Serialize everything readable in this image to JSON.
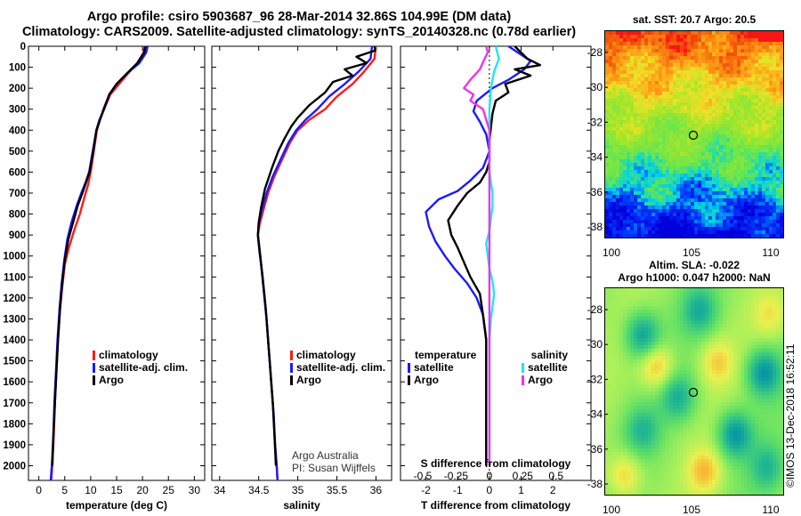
{
  "header": {
    "line1": "Argo profile: csiro 5903687_96 28-Mar-2014 32.86S 104.99E (DM data)",
    "line2": "Climatology: CARS2009. Satellite-adjusted climatology: synTS_20140328.nc (0.78d earlier)"
  },
  "colors": {
    "climatology": "#ff1a1a",
    "satellite": "#1a1aff",
    "argo": "#000000",
    "satellite_s": "#22e5f0",
    "argo_s": "#f032f0"
  },
  "chart_data": [
    {
      "type": "line",
      "name": "temperature",
      "xlabel": "temperature (deg C)",
      "ylabel": "pressure (dbar)",
      "xlim": [
        -2,
        32
      ],
      "ylim": [
        2070,
        0
      ],
      "xticks": [
        0,
        5,
        10,
        15,
        20,
        25,
        30
      ],
      "yticks": [
        0,
        100,
        200,
        300,
        400,
        500,
        600,
        700,
        800,
        900,
        1000,
        1100,
        1200,
        1300,
        1400,
        1500,
        1600,
        1700,
        1800,
        1900,
        2000
      ],
      "legend": [
        "climatology",
        "satellite-adj. clim.",
        "Argo"
      ],
      "legend_position": "lower-right",
      "series": [
        {
          "name": "climatology",
          "x": [
            20.4,
            20.2,
            19.0,
            17.2,
            15.5,
            13.8,
            12.6,
            11.8,
            11.2,
            10.6,
            10.0,
            9.5,
            8.8,
            7.9,
            6.8,
            5.8,
            5.0,
            4.5,
            4.1,
            3.7,
            3.4,
            3.1,
            2.9,
            2.6,
            2.4
          ],
          "y": [
            0,
            30,
            80,
            130,
            180,
            230,
            300,
            350,
            400,
            500,
            600,
            660,
            720,
            800,
            880,
            960,
            1040,
            1150,
            1250,
            1400,
            1550,
            1700,
            1850,
            2000,
            2070
          ]
        },
        {
          "name": "satellite-adj. clim.",
          "x": [
            21.0,
            20.7,
            19.4,
            17.0,
            15.0,
            13.6,
            12.6,
            11.7,
            11.1,
            10.4,
            9.7,
            9.0,
            8.2,
            7.3,
            6.3,
            5.5,
            4.9,
            4.4,
            4.0,
            3.6,
            3.3,
            3.0,
            2.8,
            2.5,
            2.3
          ],
          "y": [
            0,
            30,
            80,
            130,
            180,
            230,
            300,
            350,
            400,
            500,
            600,
            650,
            700,
            760,
            840,
            920,
            1020,
            1130,
            1250,
            1400,
            1550,
            1700,
            1850,
            2000,
            2070
          ]
        },
        {
          "name": "Argo",
          "x": [
            20.6,
            20.5,
            20.3,
            19.0,
            17.0,
            15.0,
            13.6,
            12.5,
            11.8,
            11.1,
            10.5,
            9.8,
            9.1,
            8.4,
            7.5,
            6.6,
            5.7,
            5.0,
            4.5,
            4.1,
            3.7,
            3.4,
            3.1,
            2.8,
            2.6
          ],
          "y": [
            0,
            10,
            30,
            80,
            130,
            180,
            230,
            300,
            350,
            400,
            500,
            600,
            650,
            700,
            760,
            840,
            920,
            1020,
            1130,
            1250,
            1400,
            1550,
            1700,
            1850,
            2000
          ]
        }
      ]
    },
    {
      "type": "line",
      "name": "salinity",
      "xlabel": "salinity",
      "ylabel": "",
      "xlim": [
        33.9,
        36.2
      ],
      "ylim": [
        2070,
        0
      ],
      "xticks": [
        34,
        34.5,
        35,
        35.5,
        36
      ],
      "xtick_labels": [
        "34",
        "34.5",
        "35",
        "35.5",
        "36"
      ],
      "legend": [
        "climatology",
        "satellite-adj. clim.",
        "Argo"
      ],
      "legend_position": "lower-right",
      "series": [
        {
          "name": "climatology",
          "x": [
            36.0,
            35.98,
            35.85,
            35.7,
            35.5,
            35.35,
            35.15,
            35.0,
            34.9,
            34.8,
            34.7,
            34.62,
            34.56,
            34.51,
            34.49,
            34.52,
            34.56,
            34.6,
            34.63,
            34.66,
            34.69,
            34.71,
            34.73,
            34.74
          ],
          "y": [
            0,
            60,
            120,
            180,
            240,
            300,
            350,
            400,
            460,
            540,
            620,
            700,
            780,
            850,
            900,
            1000,
            1150,
            1300,
            1450,
            1600,
            1750,
            1900,
            2000,
            2070
          ]
        },
        {
          "name": "satellite-adj. clim.",
          "x": [
            35.95,
            35.93,
            35.78,
            35.6,
            35.4,
            35.25,
            35.1,
            34.98,
            34.88,
            34.78,
            34.68,
            34.6,
            34.54,
            34.5,
            34.49,
            34.52,
            34.56,
            34.6,
            34.63,
            34.66,
            34.69,
            34.71,
            34.73,
            34.74
          ],
          "y": [
            0,
            60,
            120,
            180,
            240,
            300,
            350,
            400,
            460,
            540,
            620,
            700,
            780,
            850,
            900,
            1000,
            1150,
            1300,
            1450,
            1600,
            1750,
            1900,
            2000,
            2070
          ]
        },
        {
          "name": "Argo",
          "x": [
            35.98,
            35.99,
            35.75,
            35.88,
            35.6,
            35.7,
            35.45,
            35.35,
            35.15,
            35.0,
            34.92,
            34.83,
            34.75,
            34.67,
            34.58,
            34.53,
            34.5,
            34.49,
            34.51,
            34.55,
            34.59,
            34.62,
            34.65,
            34.68,
            34.7,
            34.72
          ],
          "y": [
            0,
            20,
            50,
            80,
            110,
            140,
            170,
            220,
            280,
            340,
            380,
            440,
            500,
            580,
            680,
            770,
            840,
            900,
            980,
            1100,
            1250,
            1400,
            1550,
            1700,
            1850,
            2000
          ]
        }
      ]
    },
    {
      "type": "line",
      "name": "difference",
      "xlabel": "T difference from climatology",
      "x2label": "S difference from climatology",
      "xlim": [
        -2.8,
        3.2
      ],
      "ylim": [
        2070,
        0
      ],
      "xticks": [
        -2,
        -1,
        0,
        1,
        2
      ],
      "xtick_labels": [
        "-2",
        "-1",
        "0",
        "1",
        "2"
      ],
      "x2ticks": [
        -0.5,
        -0.25,
        0,
        0.25,
        0.5
      ],
      "x2tick_labels": [
        "-0.5",
        "-0.25",
        "0",
        "0.25",
        "0.5"
      ],
      "legend_left": {
        "title": "temperature",
        "items": [
          "satellite",
          "Argo"
        ]
      },
      "legend_right": {
        "title": "salinity",
        "items": [
          "satellite",
          "Argo"
        ]
      },
      "series": [
        {
          "name": "temperature satellite",
          "x": [
            0.6,
            0.9,
            1.3,
            1.1,
            0.6,
            0.1,
            -0.4,
            -0.5,
            -0.3,
            -0.1,
            0.0,
            -0.2,
            -0.6,
            -1.0,
            -1.6,
            -2.0,
            -1.9,
            -1.7,
            -1.4,
            -1.1,
            -0.7,
            -0.4,
            -0.2,
            -0.1,
            -0.1,
            -0.1,
            -0.1,
            -0.1,
            -0.1
          ],
          "y": [
            0,
            30,
            70,
            110,
            160,
            200,
            260,
            310,
            360,
            420,
            500,
            580,
            640,
            690,
            730,
            790,
            860,
            930,
            1000,
            1060,
            1130,
            1200,
            1280,
            1400,
            1550,
            1700,
            1800,
            1900,
            2000
          ]
        },
        {
          "name": "temperature Argo",
          "x": [
            0.8,
            1.0,
            1.2,
            1.6,
            0.8,
            1.3,
            0.5,
            0.6,
            0.2,
            0.1,
            0.0,
            0.0,
            -0.1,
            -0.3,
            -0.7,
            -1.0,
            -1.3,
            -1.2,
            -1.0,
            -0.8,
            -0.6,
            -0.3,
            -0.2,
            -0.1,
            -0.1,
            -0.1,
            -0.1
          ],
          "y": [
            0,
            30,
            60,
            90,
            110,
            140,
            180,
            220,
            260,
            320,
            450,
            550,
            600,
            650,
            700,
            760,
            830,
            900,
            960,
            1030,
            1100,
            1180,
            1280,
            1400,
            1600,
            1800,
            2000
          ]
        },
        {
          "name": "salinity satellite",
          "x": [
            0.2,
            0.3,
            0.15,
            0.05,
            0.0,
            0.0,
            0.0,
            0.0,
            0.1,
            0.1,
            0.05,
            0.0,
            -0.1,
            -0.05,
            0.0,
            0.1,
            0.15,
            0.1,
            0.05,
            0.0,
            0.0,
            0.0,
            0.0
          ],
          "y": [
            0,
            60,
            120,
            200,
            300,
            400,
            500,
            600,
            700,
            760,
            820,
            880,
            940,
            1000,
            1060,
            1120,
            1180,
            1240,
            1300,
            1400,
            1600,
            1800,
            2000
          ]
        },
        {
          "name": "salinity Argo",
          "x": [
            -0.1,
            -0.05,
            -0.15,
            -0.3,
            -0.6,
            -0.8,
            -0.5,
            -0.6,
            -0.2,
            -0.1,
            0.0,
            0.0,
            0.0,
            0.0,
            0.0
          ],
          "y": [
            0,
            30,
            60,
            110,
            160,
            200,
            230,
            260,
            300,
            350,
            400,
            600,
            900,
            1400,
            2000
          ]
        }
      ]
    }
  ],
  "credit": {
    "line1": "Argo Australia",
    "line2": "PI: Susan Wijffels"
  },
  "maps": {
    "sst": {
      "title": "sat. SST: 20.7 Argo: 20.5",
      "lat_ticks": [
        "-28",
        "-30",
        "-32",
        "-34",
        "-36",
        "-38"
      ],
      "lon_ticks": [
        "100",
        "105",
        "110"
      ]
    },
    "sla": {
      "title_line1": "Altim. SLA: -0.022",
      "title_line2": "Argo h1000: 0.047 h2000: NaN",
      "lat_ticks": [
        "-28",
        "-30",
        "-32",
        "-34",
        "-36",
        "-38"
      ],
      "lon_ticks": [
        "100",
        "105",
        "110"
      ]
    }
  },
  "imos_stamp": "©IMOS 13-Dec-2018 16:52:11"
}
